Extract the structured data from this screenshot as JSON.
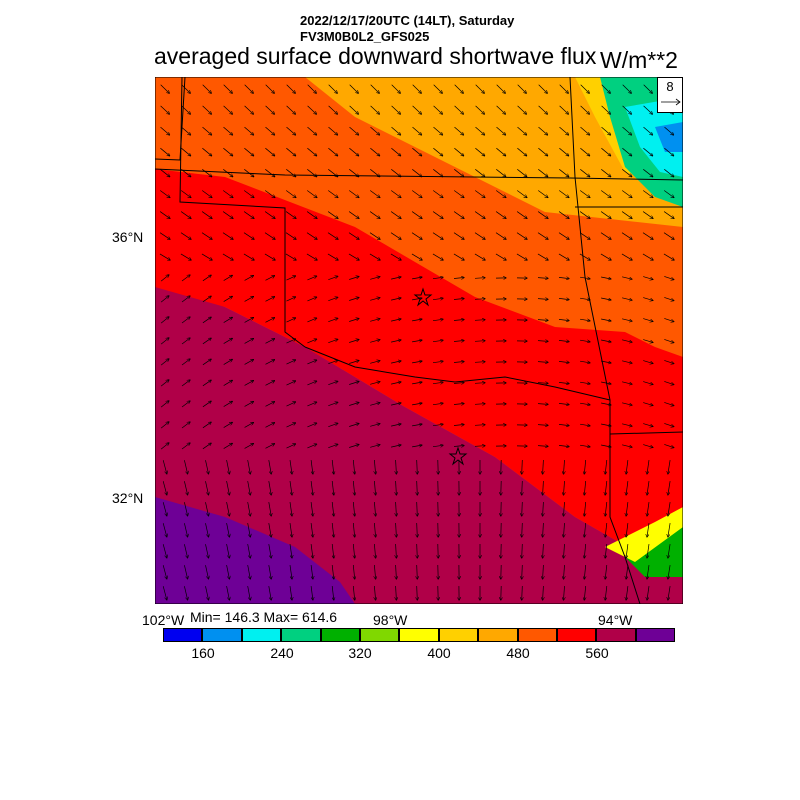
{
  "header": {
    "datetime": "2022/12/17/20UTC (14LT), Saturday",
    "model": "FV3M0B0L2_GFS025",
    "title": "averaged surface downward shortwave flux",
    "units": "W/m**2"
  },
  "map": {
    "region": "Oklahoma / Texas",
    "lat_labels": [
      "36°N",
      "32°N"
    ],
    "lon_labels": [
      "102°W",
      "98°W",
      "94°W"
    ],
    "stats": "Min= 146.3 Max= 614.6",
    "vector_reference": "8",
    "markers": [
      "star",
      "star"
    ]
  },
  "colorbar": {
    "colors": [
      "#0000f0",
      "#0090f0",
      "#00f0f0",
      "#00d080",
      "#00b000",
      "#80d800",
      "#ffff00",
      "#ffd000",
      "#ffa800",
      "#ff5800",
      "#ff0000",
      "#b00048",
      "#6e0096"
    ],
    "labels": [
      "160",
      "240",
      "320",
      "400",
      "480",
      "560"
    ]
  }
}
